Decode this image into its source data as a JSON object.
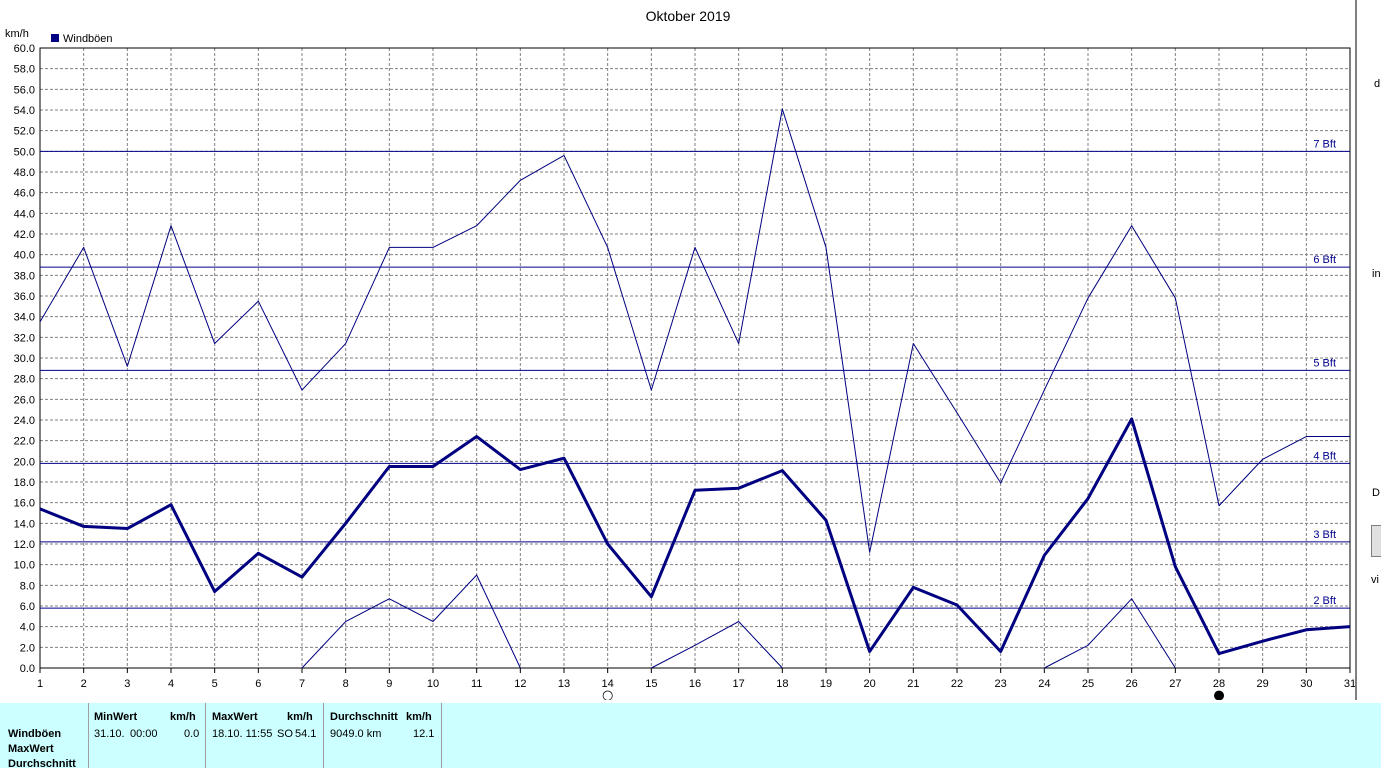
{
  "chart_data": {
    "type": "line",
    "title": "Oktober 2019",
    "ylabel": "km/h",
    "xlabel": "",
    "ylim": [
      0,
      60
    ],
    "y_ticks": [
      "0.0",
      "2.0",
      "4.0",
      "6.0",
      "8.0",
      "10.0",
      "12.0",
      "14.0",
      "16.0",
      "18.0",
      "20.0",
      "22.0",
      "24.0",
      "26.0",
      "28.0",
      "30.0",
      "32.0",
      "34.0",
      "36.0",
      "38.0",
      "40.0",
      "42.0",
      "44.0",
      "46.0",
      "48.0",
      "50.0",
      "52.0",
      "54.0",
      "56.0",
      "58.0",
      "60.0"
    ],
    "x": [
      1,
      2,
      3,
      4,
      5,
      6,
      7,
      8,
      9,
      10,
      11,
      12,
      13,
      14,
      15,
      16,
      17,
      18,
      19,
      20,
      21,
      22,
      23,
      24,
      25,
      26,
      27,
      28,
      29,
      30,
      31
    ],
    "x_ticks": [
      "1",
      "2",
      "3",
      "4",
      "5",
      "6",
      "7",
      "8",
      "9",
      "10",
      "11",
      "12",
      "13",
      "14",
      "15",
      "16",
      "17",
      "18",
      "19",
      "20",
      "21",
      "22",
      "23",
      "24",
      "25",
      "26",
      "27",
      "28",
      "29",
      "30",
      "31"
    ],
    "grid": true,
    "legend": {
      "placement": "top-left",
      "entries": [
        {
          "label": "Windböen",
          "color": "#000080"
        }
      ]
    },
    "series": [
      {
        "name": "Windböen",
        "role": "max",
        "values": [
          33.5,
          40.7,
          29.2,
          42.8,
          31.4,
          35.5,
          26.9,
          31.4,
          40.7,
          40.7,
          42.8,
          47.2,
          49.6,
          40.7,
          26.9,
          40.7,
          31.4,
          54.1,
          40.7,
          11.2,
          31.4,
          24.7,
          17.9,
          26.9,
          35.8,
          42.8,
          35.8,
          15.7,
          20.2,
          22.4,
          22.4
        ]
      },
      {
        "name": "Windböen",
        "role": "avg",
        "values": [
          15.4,
          13.7,
          13.5,
          15.8,
          7.4,
          11.1,
          8.8,
          14.0,
          19.5,
          19.5,
          22.4,
          19.2,
          20.3,
          12.0,
          6.9,
          17.2,
          17.4,
          19.1,
          14.3,
          1.6,
          7.8,
          6.1,
          1.6,
          10.9,
          16.4,
          24.1,
          9.8,
          1.4,
          2.6,
          3.7,
          4.0
        ]
      },
      {
        "name": "Windböen",
        "role": "min",
        "segments": [
          {
            "x": [
              7,
              8,
              9,
              10,
              11,
              12
            ],
            "values": [
              0.0,
              4.5,
              6.7,
              4.5,
              9.0,
              0.0
            ]
          },
          {
            "x": [
              15,
              16,
              17,
              18
            ],
            "values": [
              0.0,
              2.2,
              4.5,
              0.0
            ]
          },
          {
            "x": [
              24,
              25,
              26,
              27
            ],
            "values": [
              0.0,
              2.2,
              6.7,
              0.0
            ]
          }
        ]
      }
    ],
    "reference_lines": [
      {
        "label": "2 Bft",
        "value": 5.8
      },
      {
        "label": "3 Bft",
        "value": 12.2
      },
      {
        "label": "4 Bft",
        "value": 19.8
      },
      {
        "label": "5 Bft",
        "value": 28.8
      },
      {
        "label": "6 Bft",
        "value": 38.8
      },
      {
        "label": "7 Bft",
        "value": 50.0
      }
    ],
    "moon_phases": [
      {
        "x": 14,
        "phase": "full",
        "symbol": "○"
      },
      {
        "x": 28,
        "phase": "new",
        "symbol": "●"
      }
    ],
    "colors": {
      "line": "#000080",
      "grid": "#808080",
      "reference": "#00008b"
    }
  },
  "right_strip": {
    "letters": [
      "d",
      "in",
      "D",
      "vi"
    ]
  },
  "stats": {
    "row_labels": [
      "Windböen",
      "MaxWert",
      "Durchschnitt"
    ],
    "min": {
      "header": "MinWert",
      "unit": "km/h",
      "date": "31.10.",
      "time": "00:00",
      "value": "0.0"
    },
    "max": {
      "header": "MaxWert",
      "unit": "km/h",
      "datetime": "18.10.  11:55",
      "dir": "SO",
      "value": "54.1"
    },
    "avg": {
      "header": "Durchschnitt",
      "unit": "km/h",
      "distance": "9049.0 km",
      "value": "12.1"
    },
    "bg_color": "#ccffff"
  }
}
